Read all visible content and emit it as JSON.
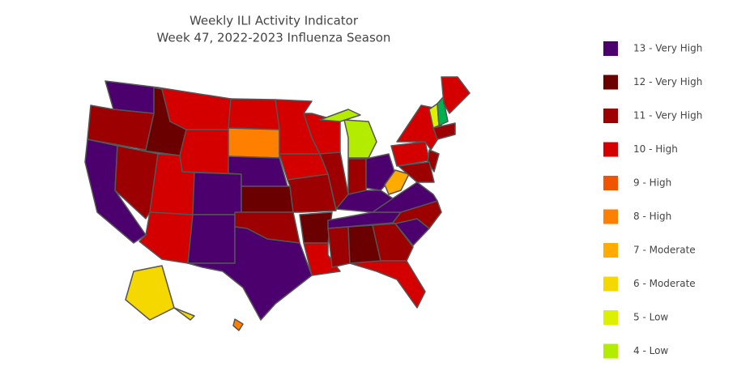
{
  "title": "Weekly ILI Activity Indicator",
  "subtitle": "Week 47, 2022-2023 Influenza Season",
  "legend": [
    {
      "label": "13 - Very High",
      "color": "#4b006e"
    },
    {
      "label": "12 - Very High",
      "color": "#6b0000"
    },
    {
      "label": "11 - Very High",
      "color": "#9c0000"
    },
    {
      "label": "10 - High",
      "color": "#d40000"
    },
    {
      "label": "9 - High",
      "color": "#f05400"
    },
    {
      "label": "8 - High",
      "color": "#ff7f00"
    },
    {
      "label": "7 - Moderate",
      "color": "#ffab00"
    },
    {
      "label": "6 - Moderate",
      "color": "#f5d800"
    },
    {
      "label": "5 - Low",
      "color": "#dcf000"
    },
    {
      "label": "4 - Low",
      "color": "#b4ec00"
    }
  ]
}
